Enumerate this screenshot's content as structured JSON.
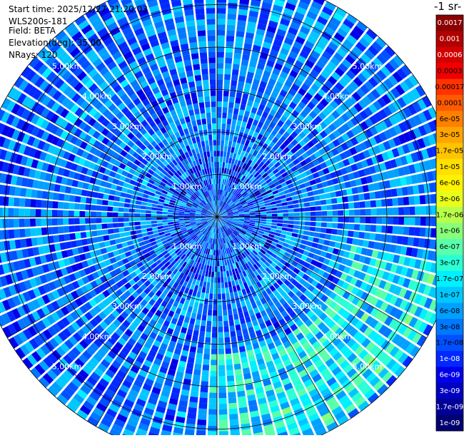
{
  "info": {
    "start_time": "Start time: 2025/12/27 21:20:03",
    "instrument": "WLS200s-181",
    "field": "Field: BETA",
    "elevation": "Elevation(deg): 35.00",
    "nrays": "NRays: 120"
  },
  "chart_data": {
    "type": "heatmap",
    "projection": "polar-ppi",
    "grid": true,
    "range_unit": "km",
    "range_max": 5.7,
    "range_rings": [
      {
        "value": 1.0,
        "label": "1.00km"
      },
      {
        "value": 2.0,
        "label": "2.00km"
      },
      {
        "value": 3.0,
        "label": "3.00km"
      },
      {
        "value": 4.0,
        "label": "4.00km"
      },
      {
        "value": 5.0,
        "label": "5.00km"
      }
    ],
    "n_rays": 120,
    "colorbar": {
      "title": "-1 sr-",
      "scale": "log",
      "range": [
        1e-09,
        0.002
      ],
      "placement": "right",
      "ticks": [
        "0.0017",
        "0.001",
        "0.0006",
        "0.0003",
        "0.00017",
        "0.0001",
        "6e-05",
        "3e-05",
        "1.7e-05",
        "1e-05",
        "6e-06",
        "3e-06",
        "1.7e-06",
        "1e-06",
        "6e-07",
        "3e-07",
        "1.7e-07",
        "1e-07",
        "6e-08",
        "3e-08",
        "1.7e-08",
        "1e-08",
        "6e-09",
        "3e-09",
        "1.7e-09",
        "1e-09"
      ],
      "colors": [
        "#8b0000",
        "#b00000",
        "#d40000",
        "#f00000",
        "#ff3300",
        "#ff5a00",
        "#ff8000",
        "#ffa500",
        "#ffc400",
        "#ffe000",
        "#fff200",
        "#e8ff1a",
        "#b8ff4a",
        "#88ff7a",
        "#5affaa",
        "#2bffd4",
        "#00f0ff",
        "#00c8ff",
        "#00a0ff",
        "#0078ff",
        "#0050ff",
        "#0028ff",
        "#0000e8",
        "#0000c0",
        "#000098",
        "#000070"
      ]
    },
    "regions": [
      {
        "description": "dominant background",
        "value": 3e-08
      },
      {
        "description": "enhanced ring band",
        "azimuth_range": [
          100,
          180
        ],
        "range_km": [
          3.2,
          5.6
        ],
        "value": 1.7e-07
      },
      {
        "description": "near-range pockets",
        "range_km": [
          0.2,
          1.5
        ],
        "value": 8e-09
      }
    ]
  }
}
